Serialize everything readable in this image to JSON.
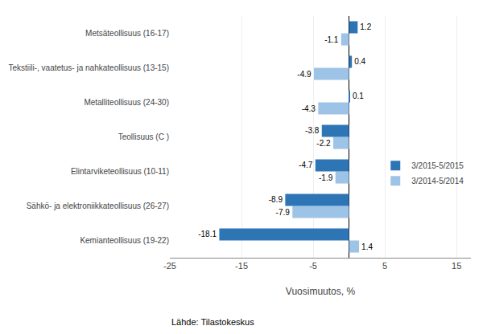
{
  "chart_data": {
    "type": "bar",
    "orientation": "horizontal",
    "categories": [
      "Kemianteollisuus (19-22)",
      "Sähkö- ja elektroniikkateollisuus (26-27)",
      "Elintarviketeollisuus (10-11)",
      "Teollisuus (C )",
      "Metalliteollisuus (24-30)",
      "Tekstiili-, vaatetus- ja nahkateollisuus (13-15)",
      "Metsäteollisuus (16-17)"
    ],
    "series": [
      {
        "name": "3/2015-5/2015",
        "color": "#2E75B6",
        "values": [
          -18.1,
          -8.9,
          -4.7,
          -3.8,
          0.1,
          0.4,
          1.2
        ]
      },
      {
        "name": "3/2014-5/2014",
        "color": "#9DC3E6",
        "values": [
          1.4,
          -7.9,
          -1.9,
          -2.2,
          -4.3,
          -4.9,
          -1.1
        ]
      }
    ],
    "xlabel": "Vuosimuutos, %",
    "xlim": [
      -25,
      17
    ],
    "xticks": [
      -25,
      -15,
      -5,
      5,
      15
    ],
    "grid": true,
    "legend": "right",
    "data_labels": true,
    "annotations": [
      "Lähde: Tilastokeskus"
    ]
  }
}
